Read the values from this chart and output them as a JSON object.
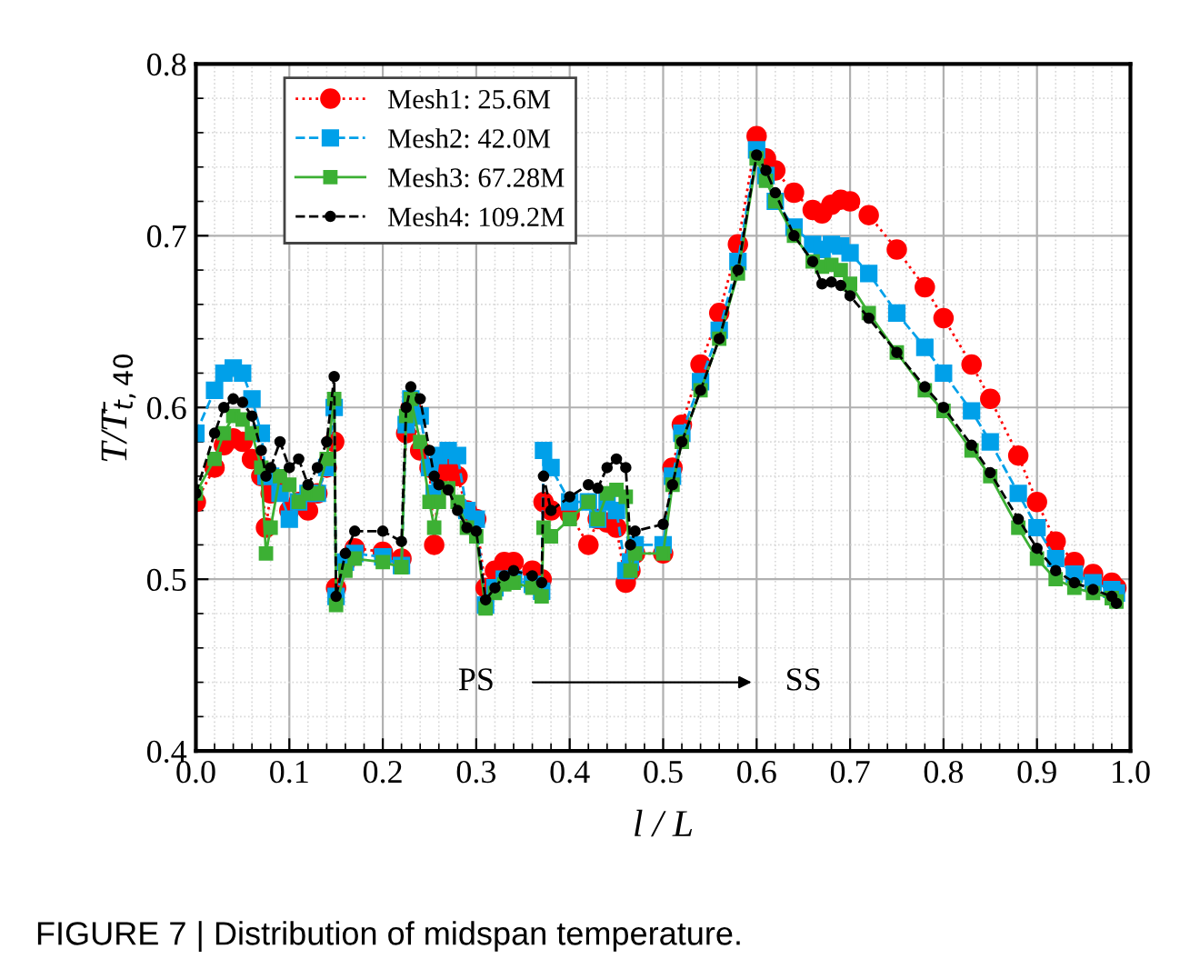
{
  "chart_data": {
    "type": "line",
    "xlabel": "l / L",
    "ylabel": "T/T̄$_{t,40}$",
    "xlim": [
      0.0,
      1.0
    ],
    "xticks": [
      {
        "value": 0.0,
        "label": "0.0"
      },
      0.1,
      0.2,
      0.3,
      0.4,
      0.5,
      0.6,
      0.7,
      0.8,
      0.9,
      {
        "value": 1.0,
        "label": "1.0"
      }
    ],
    "ylim": [
      0.4,
      0.8
    ],
    "yticks": [
      0.4,
      0.5,
      0.6,
      0.7,
      0.8
    ],
    "grid": true,
    "legend": "top left",
    "x": [
      0.0,
      0.02,
      0.03,
      0.04,
      0.05,
      0.06,
      0.07,
      0.075,
      0.08,
      0.09,
      0.1,
      0.11,
      0.12,
      0.13,
      0.14,
      0.148,
      0.15,
      0.16,
      0.17,
      0.2,
      0.22,
      0.225,
      0.23,
      0.24,
      0.25,
      0.255,
      0.26,
      0.27,
      0.28,
      0.29,
      0.3,
      0.31,
      0.32,
      0.33,
      0.34,
      0.36,
      0.37,
      0.372,
      0.38,
      0.4,
      0.42,
      0.43,
      0.44,
      0.45,
      0.46,
      0.465,
      0.47,
      0.5,
      0.51,
      0.52,
      0.54,
      0.56,
      0.58,
      0.6,
      0.61,
      0.62,
      0.64,
      0.66,
      0.67,
      0.68,
      0.69,
      0.7,
      0.72,
      0.75,
      0.78,
      0.8,
      0.83,
      0.85,
      0.88,
      0.9,
      0.92,
      0.94,
      0.96,
      0.98,
      0.985
    ],
    "series": [
      {
        "name": "Mesh1: 25.6M",
        "color": "#ff0000",
        "marker": "circle",
        "line_style": "dotted",
        "values": [
          0.545,
          0.565,
          0.578,
          0.582,
          0.58,
          0.57,
          0.56,
          0.53,
          0.55,
          0.555,
          0.54,
          0.545,
          0.54,
          0.55,
          0.565,
          0.58,
          0.495,
          0.51,
          0.518,
          0.516,
          0.512,
          0.585,
          0.6,
          0.575,
          0.565,
          0.52,
          0.56,
          0.565,
          0.56,
          0.54,
          0.535,
          0.495,
          0.505,
          0.51,
          0.51,
          0.505,
          0.5,
          0.545,
          0.54,
          0.538,
          0.52,
          0.535,
          0.533,
          0.53,
          0.498,
          0.505,
          0.515,
          0.515,
          0.565,
          0.59,
          0.625,
          0.655,
          0.695,
          0.758,
          0.745,
          0.738,
          0.725,
          0.715,
          0.713,
          0.718,
          0.721,
          0.72,
          0.712,
          0.692,
          0.67,
          0.652,
          0.625,
          0.605,
          0.572,
          0.545,
          0.522,
          0.51,
          0.503,
          0.498,
          0.495
        ]
      },
      {
        "name": "Mesh2: 42.0M",
        "color": "#00a0e9",
        "marker": "square",
        "line_style": "dashed",
        "values": [
          0.585,
          0.61,
          0.62,
          0.623,
          0.62,
          0.605,
          0.585,
          0.56,
          0.56,
          0.55,
          0.535,
          0.545,
          0.55,
          0.55,
          0.565,
          0.6,
          0.49,
          0.51,
          0.515,
          0.513,
          0.508,
          0.59,
          0.605,
          0.595,
          0.565,
          0.55,
          0.572,
          0.575,
          0.572,
          0.54,
          0.535,
          0.485,
          0.495,
          0.5,
          0.5,
          0.497,
          0.493,
          0.575,
          0.565,
          0.545,
          0.545,
          0.535,
          0.545,
          0.54,
          0.505,
          0.51,
          0.52,
          0.52,
          0.56,
          0.585,
          0.615,
          0.645,
          0.685,
          0.75,
          0.735,
          0.72,
          0.705,
          0.695,
          0.692,
          0.695,
          0.694,
          0.69,
          0.678,
          0.655,
          0.635,
          0.62,
          0.598,
          0.58,
          0.55,
          0.53,
          0.512,
          0.503,
          0.498,
          0.494,
          0.492
        ]
      },
      {
        "name": "Mesh3: 67.28M",
        "color": "#3cb034",
        "marker": "square",
        "line_style": "solid",
        "values": [
          0.55,
          0.57,
          0.585,
          0.595,
          0.593,
          0.585,
          0.565,
          0.515,
          0.53,
          0.56,
          0.555,
          0.545,
          0.55,
          0.55,
          0.57,
          0.605,
          0.485,
          0.505,
          0.512,
          0.51,
          0.507,
          0.595,
          0.605,
          0.58,
          0.545,
          0.53,
          0.545,
          0.553,
          0.545,
          0.53,
          0.525,
          0.483,
          0.492,
          0.497,
          0.498,
          0.495,
          0.49,
          0.53,
          0.525,
          0.535,
          0.545,
          0.535,
          0.55,
          0.552,
          0.548,
          0.505,
          0.515,
          0.515,
          0.555,
          0.58,
          0.61,
          0.64,
          0.678,
          0.745,
          0.732,
          0.72,
          0.7,
          0.685,
          0.682,
          0.683,
          0.68,
          0.672,
          0.655,
          0.632,
          0.61,
          0.598,
          0.575,
          0.56,
          0.53,
          0.512,
          0.5,
          0.495,
          0.492,
          0.489,
          0.487
        ]
      },
      {
        "name": "Mesh4: 109.2M",
        "color": "#000000",
        "marker": "circle",
        "line_style": "dashed",
        "values": [
          0.55,
          0.585,
          0.6,
          0.605,
          0.603,
          0.595,
          0.575,
          0.56,
          0.565,
          0.58,
          0.565,
          0.57,
          0.555,
          0.565,
          0.58,
          0.618,
          0.49,
          0.515,
          0.528,
          0.528,
          0.522,
          0.6,
          0.612,
          0.605,
          0.575,
          0.56,
          0.555,
          0.552,
          0.54,
          0.53,
          0.528,
          0.488,
          0.495,
          0.502,
          0.505,
          0.502,
          0.498,
          0.56,
          0.54,
          0.548,
          0.555,
          0.553,
          0.565,
          0.57,
          0.565,
          0.52,
          0.528,
          0.532,
          0.555,
          0.58,
          0.61,
          0.64,
          0.68,
          0.747,
          0.738,
          0.725,
          0.7,
          0.685,
          0.672,
          0.673,
          0.671,
          0.665,
          0.652,
          0.632,
          0.612,
          0.6,
          0.578,
          0.562,
          0.535,
          0.518,
          0.505,
          0.498,
          0.494,
          0.49,
          0.486
        ]
      }
    ],
    "annotations": [
      "PS",
      "SS",
      "FIGURE 7 | Distribution of midspan temperature."
    ]
  }
}
